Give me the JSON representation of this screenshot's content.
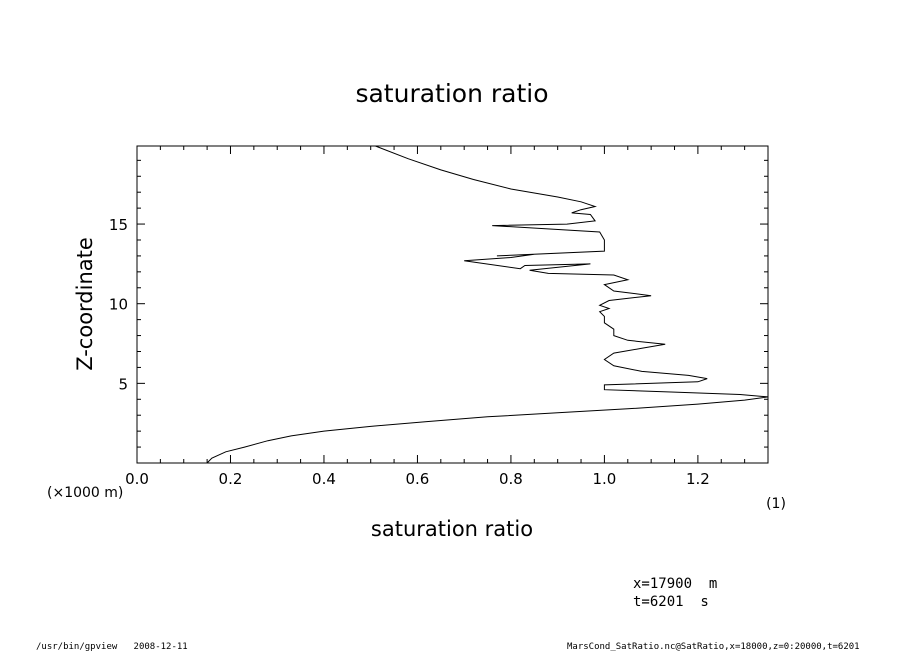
{
  "chart_data": {
    "type": "line",
    "title": "saturation ratio",
    "xlabel": "saturation ratio",
    "ylabel": "Z-coordinate",
    "x_unit": "(1)",
    "y_unit": "(×1000 m)",
    "xlim": [
      0.0,
      1.35
    ],
    "ylim": [
      0,
      19.9
    ],
    "x_ticks": [
      0.0,
      0.2,
      0.4,
      0.6,
      0.8,
      1.0,
      1.2
    ],
    "x_tick_labels": [
      "0.0",
      "0.2",
      "0.4",
      "0.6",
      "0.8",
      "1.0",
      "1.2"
    ],
    "y_ticks": [
      5,
      10,
      15
    ],
    "y_tick_labels": [
      "5",
      "10",
      "15"
    ],
    "grid": false,
    "series": [
      {
        "points": [
          [
            0.15,
            0.0
          ],
          [
            0.16,
            0.3
          ],
          [
            0.19,
            0.7
          ],
          [
            0.23,
            1.0
          ],
          [
            0.28,
            1.4
          ],
          [
            0.33,
            1.7
          ],
          [
            0.4,
            2.0
          ],
          [
            0.5,
            2.3
          ],
          [
            0.62,
            2.6
          ],
          [
            0.75,
            2.9
          ],
          [
            0.9,
            3.15
          ],
          [
            1.05,
            3.4
          ],
          [
            1.2,
            3.7
          ],
          [
            1.3,
            3.95
          ],
          [
            1.35,
            4.15
          ],
          [
            1.29,
            4.3
          ],
          [
            1.15,
            4.45
          ],
          [
            1.0,
            4.6
          ],
          [
            1.0,
            4.9
          ],
          [
            1.2,
            5.1
          ],
          [
            1.22,
            5.3
          ],
          [
            1.18,
            5.5
          ],
          [
            1.08,
            5.75
          ],
          [
            1.02,
            6.1
          ],
          [
            1.0,
            6.5
          ],
          [
            1.02,
            6.9
          ],
          [
            1.08,
            7.2
          ],
          [
            1.13,
            7.45
          ],
          [
            1.05,
            7.7
          ],
          [
            1.02,
            8.0
          ],
          [
            1.02,
            8.4
          ],
          [
            1.0,
            8.8
          ],
          [
            1.0,
            9.2
          ],
          [
            0.99,
            9.5
          ],
          [
            1.01,
            9.7
          ],
          [
            0.99,
            9.9
          ],
          [
            1.01,
            10.2
          ],
          [
            1.1,
            10.5
          ],
          [
            1.02,
            10.8
          ],
          [
            1.0,
            11.2
          ],
          [
            1.05,
            11.5
          ],
          [
            1.02,
            11.8
          ],
          [
            0.88,
            11.9
          ],
          [
            0.84,
            12.1
          ],
          [
            0.97,
            12.5
          ],
          [
            0.83,
            12.4
          ],
          [
            0.82,
            12.2
          ],
          [
            0.7,
            12.7
          ],
          [
            0.8,
            12.9
          ],
          [
            0.85,
            13.1
          ],
          [
            0.77,
            13.0
          ],
          [
            1.0,
            13.3
          ],
          [
            1.0,
            14.0
          ],
          [
            0.99,
            14.5
          ],
          [
            0.76,
            14.9
          ],
          [
            0.92,
            15.0
          ],
          [
            0.98,
            15.2
          ],
          [
            0.97,
            15.6
          ],
          [
            0.93,
            15.7
          ],
          [
            0.95,
            15.9
          ],
          [
            0.98,
            16.1
          ],
          [
            0.95,
            16.4
          ],
          [
            0.9,
            16.7
          ],
          [
            0.8,
            17.2
          ],
          [
            0.72,
            17.8
          ],
          [
            0.65,
            18.4
          ],
          [
            0.58,
            19.1
          ],
          [
            0.51,
            19.9
          ]
        ]
      }
    ]
  },
  "info": {
    "x_line": "x=17900  m",
    "t_line": "t=6201  s"
  },
  "footer": {
    "left": "/usr/bin/gpview   2008-12-11",
    "right": "MarsCond_SatRatio.nc@SatRatio,x=18000,z=0:20000,t=6201"
  }
}
